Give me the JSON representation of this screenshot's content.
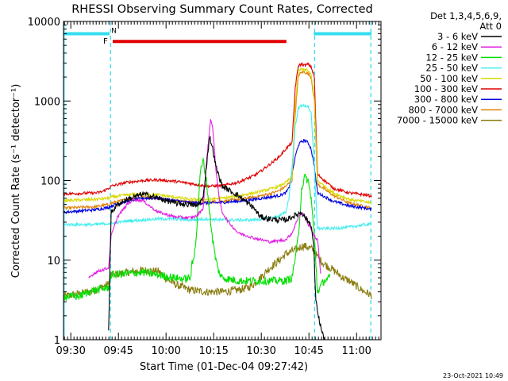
{
  "chart_data": {
    "type": "line",
    "title": "RHESSI Observing Summary Count Rates, Corrected",
    "xlabel": "Start Time (01-Dec-04 09:27:42)",
    "ylabel": "Corrected Count Rate (s⁻¹ detector⁻¹)",
    "yscale": "log",
    "ylim": [
      1,
      10000
    ],
    "xlim_minutes": [
      0,
      100
    ],
    "x_unit": "minutes after 09:27:42",
    "x_ticks": [
      {
        "label": "09:30",
        "value": 2.3
      },
      {
        "label": "09:45",
        "value": 17.3
      },
      {
        "label": "10:00",
        "value": 32.3
      },
      {
        "label": "10:15",
        "value": 47.3
      },
      {
        "label": "10:30",
        "value": 62.3
      },
      {
        "label": "10:45",
        "value": 77.3
      },
      {
        "label": "11:00",
        "value": 92.3
      }
    ],
    "y_ticks": [
      {
        "label": "1",
        "value": 1
      },
      {
        "label": "10",
        "value": 10
      },
      {
        "label": "100",
        "value": 100
      },
      {
        "label": "1000",
        "value": 1000
      },
      {
        "label": "10000",
        "value": 10000
      }
    ],
    "legend_header": [
      "Det 1,3,4,5,6,9,",
      "Att 0"
    ],
    "legend_position": "right",
    "timestamp": "23-Oct-2021 10:49",
    "annotations": {
      "flag_F": {
        "label": "F",
        "start": 15.5,
        "end": 70.2,
        "value": 5600,
        "color": "#e00000"
      },
      "flag_N": {
        "label": "N",
        "segments": [
          [
            0,
            14.5
          ],
          [
            78.8,
            97
          ]
        ],
        "value": 7000,
        "color": "#33ddee"
      },
      "cyan_dashed_lines": [
        0.2,
        14.8,
        79.1,
        96.8
      ]
    },
    "series": [
      {
        "name": "3 - 6 keV",
        "color": "#000000",
        "x": [
          14.2,
          15,
          17,
          20,
          25,
          30,
          35,
          40,
          42,
          44,
          45,
          46,
          47,
          48,
          50,
          55,
          60,
          62,
          65,
          68,
          70,
          72,
          75,
          76,
          77,
          78,
          78.8,
          79.5,
          80.5,
          81.5,
          82.3
        ],
        "y": [
          1.3,
          40,
          50,
          58,
          68,
          60,
          52,
          50,
          48,
          60,
          150,
          360,
          250,
          150,
          85,
          65,
          45,
          35,
          33,
          32,
          32,
          35,
          40,
          35,
          31,
          28,
          15,
          3,
          1.8,
          1.2,
          1
        ]
      },
      {
        "name": "6 - 12 keV",
        "color": "#e020e0",
        "x": [
          8,
          10,
          12,
          14.2,
          15,
          17,
          20,
          22,
          25,
          28,
          30,
          35,
          40,
          42,
          44,
          45,
          46,
          46.3,
          47,
          48,
          49,
          50,
          52,
          55,
          60,
          65,
          70,
          72,
          74,
          75,
          76,
          77,
          78,
          79,
          80,
          81
        ],
        "y": [
          6,
          7,
          7.5,
          8,
          20,
          35,
          50,
          58,
          56,
          45,
          40,
          35,
          34,
          36,
          45,
          170,
          420,
          620,
          450,
          140,
          60,
          40,
          30,
          22,
          19,
          17,
          18,
          22,
          35,
          40,
          35,
          28,
          25,
          20,
          18,
          7
        ]
      },
      {
        "name": "12 - 25 keV",
        "color": "#00e000",
        "x": [
          0,
          5,
          8,
          10,
          14.2,
          15,
          20,
          25,
          30,
          35,
          38,
          40,
          40.5,
          41,
          42,
          43,
          44,
          45,
          46,
          47,
          48,
          49,
          50,
          55,
          60,
          65,
          70,
          72,
          74,
          75,
          76,
          77,
          78,
          79,
          80,
          82,
          84
        ],
        "y": [
          3.5,
          3.5,
          4,
          4.2,
          4.5,
          6.5,
          6.8,
          7,
          6.5,
          6,
          5.8,
          6,
          9,
          10,
          25,
          120,
          180,
          100,
          40,
          18,
          10,
          7,
          6,
          5.5,
          5.5,
          5.5,
          5.5,
          6,
          20,
          80,
          110,
          100,
          60,
          20,
          4,
          5.5,
          6
        ]
      },
      {
        "name": "25 - 50 keV",
        "color": "#40eeee",
        "x": [
          0,
          10,
          14.2,
          15,
          20,
          25,
          30,
          35,
          40,
          45,
          50,
          55,
          60,
          65,
          68,
          70,
          71,
          72,
          73,
          74,
          75,
          76,
          77,
          78,
          79,
          80,
          85,
          90,
          95,
          97
        ],
        "y": [
          28,
          28,
          29,
          29,
          31,
          32,
          33,
          33,
          32,
          33,
          32,
          32,
          32,
          34,
          36,
          40,
          60,
          150,
          500,
          800,
          900,
          850,
          870,
          700,
          150,
          25,
          25,
          26,
          28,
          28
        ]
      },
      {
        "name": "50 - 100 keV",
        "color": "#d8d800",
        "x": [
          0,
          10,
          14.2,
          15,
          20,
          25,
          30,
          35,
          40,
          45,
          50,
          55,
          60,
          65,
          68,
          70,
          72,
          73,
          74,
          75,
          76,
          77,
          78,
          79,
          80,
          85,
          90,
          95,
          97
        ],
        "y": [
          56,
          58,
          60,
          62,
          66,
          68,
          66,
          62,
          58,
          58,
          60,
          64,
          70,
          78,
          85,
          95,
          110,
          900,
          2400,
          2500,
          2500,
          2400,
          2100,
          1100,
          100,
          70,
          58,
          54,
          52
        ]
      },
      {
        "name": "100 - 300 keV",
        "color": "#e00000",
        "x": [
          0,
          10,
          12,
          14.2,
          15,
          20,
          25,
          30,
          35,
          40,
          45,
          50,
          55,
          60,
          62,
          65,
          68,
          70,
          72,
          73,
          74,
          75,
          76,
          77,
          78,
          79,
          80,
          85,
          90,
          95,
          97
        ],
        "y": [
          68,
          70,
          72,
          80,
          85,
          95,
          100,
          102,
          98,
          92,
          85,
          86,
          95,
          115,
          130,
          160,
          200,
          250,
          300,
          1500,
          2800,
          2900,
          2800,
          2900,
          2700,
          2000,
          120,
          80,
          70,
          66,
          64
        ]
      },
      {
        "name": "300 - 800 keV",
        "color": "#0000e0",
        "x": [
          0,
          10,
          14.2,
          15,
          20,
          25,
          30,
          35,
          40,
          45,
          50,
          55,
          60,
          65,
          68,
          70,
          71,
          72,
          73,
          74,
          75,
          76,
          77,
          78,
          79,
          80,
          85,
          90,
          95,
          97
        ],
        "y": [
          40,
          43,
          46,
          48,
          55,
          60,
          60,
          56,
          53,
          52,
          53,
          55,
          58,
          62,
          65,
          70,
          80,
          120,
          200,
          280,
          310,
          320,
          300,
          250,
          150,
          70,
          55,
          48,
          45,
          43
        ]
      },
      {
        "name": "800 - 7000 keV",
        "color": "#e08000",
        "x": [
          0,
          10,
          14.2,
          15,
          20,
          25,
          30,
          35,
          40,
          45,
          50,
          55,
          60,
          65,
          68,
          70,
          72,
          73,
          74,
          75,
          76,
          77,
          78,
          79,
          80,
          85,
          90,
          95,
          97
        ],
        "y": [
          45,
          47,
          50,
          52,
          58,
          62,
          60,
          56,
          54,
          54,
          55,
          58,
          62,
          68,
          75,
          85,
          100,
          700,
          2100,
          2300,
          2300,
          2200,
          2000,
          1000,
          90,
          65,
          52,
          47,
          45
        ]
      },
      {
        "name": "7000 - 15000 keV",
        "color": "#8b7d10",
        "x": [
          0,
          5,
          8,
          10,
          14.2,
          15,
          20,
          25,
          30,
          32,
          35,
          40,
          45,
          50,
          55,
          58,
          60,
          62,
          65,
          68,
          70,
          72,
          74,
          75,
          76,
          77,
          78,
          79,
          80,
          82,
          84,
          86,
          88,
          90,
          92,
          94,
          96,
          97
        ],
        "y": [
          3.5,
          3.8,
          4,
          4.2,
          5,
          6.5,
          7,
          7.5,
          7.2,
          6,
          5,
          4.2,
          4,
          4,
          4.2,
          4.5,
          5,
          6,
          8,
          10,
          12,
          13,
          14,
          15,
          15,
          14.5,
          14,
          13,
          11,
          9,
          8,
          7,
          6,
          5.5,
          4.8,
          4.2,
          3.8,
          3.6
        ]
      }
    ]
  }
}
